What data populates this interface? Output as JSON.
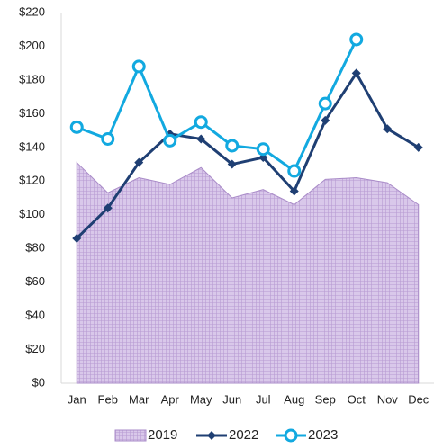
{
  "chart_data": {
    "type": "line",
    "categories": [
      "Jan",
      "Feb",
      "Mar",
      "Apr",
      "May",
      "Jun",
      "Jul",
      "Aug",
      "Sep",
      "Oct",
      "Nov",
      "Dec"
    ],
    "series": [
      {
        "name": "2019",
        "type": "area",
        "color": "#c9b3df",
        "values": [
          131,
          113,
          122,
          118,
          128,
          110,
          115,
          106,
          121,
          122,
          119,
          106
        ]
      },
      {
        "name": "2022",
        "type": "line",
        "marker": "diamond",
        "color": "#1f3f73",
        "values": [
          86,
          104,
          131,
          148,
          145,
          130,
          134,
          114,
          156,
          184,
          151,
          140
        ]
      },
      {
        "name": "2023",
        "type": "line",
        "marker": "circle",
        "color": "#12a9e0",
        "values": [
          152,
          145,
          188,
          144,
          155,
          141,
          139,
          126,
          166,
          204,
          null,
          null
        ]
      }
    ],
    "ylim": [
      0,
      220
    ],
    "yticks": [
      {
        "value": 0,
        "label": "$0"
      },
      {
        "value": 20,
        "label": "$20"
      },
      {
        "value": 40,
        "label": "$40"
      },
      {
        "value": 60,
        "label": "$60"
      },
      {
        "value": 80,
        "label": "$80"
      },
      {
        "value": 100,
        "label": "$100"
      },
      {
        "value": 120,
        "label": "$120"
      },
      {
        "value": 140,
        "label": "$140"
      },
      {
        "value": 160,
        "label": "$160"
      },
      {
        "value": 180,
        "label": "$180"
      },
      {
        "value": 200,
        "label": "$200"
      },
      {
        "value": 220,
        "label": "$220"
      }
    ],
    "grid": false,
    "legend": "bottom"
  }
}
